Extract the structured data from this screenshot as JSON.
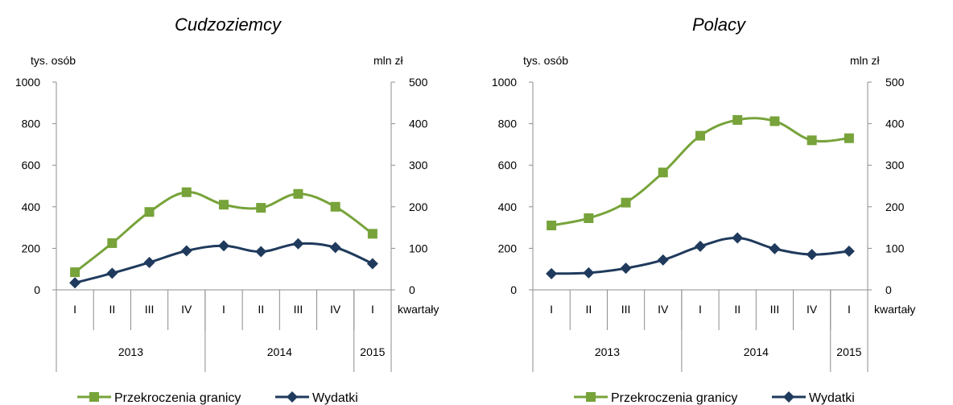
{
  "chart_data": [
    {
      "type": "line",
      "title": "Cudzoziemcy",
      "ylabel_left": "tys. osób",
      "ylabel_right": "mln zł",
      "xlabel": "kwartały",
      "ylim_left": [
        0,
        1000
      ],
      "ylim_right": [
        0,
        500
      ],
      "yticks_left": [
        "0",
        "200",
        "400",
        "600",
        "800",
        "1000"
      ],
      "yticks_right": [
        "0",
        "100",
        "200",
        "300",
        "400",
        "500"
      ],
      "categories": [
        "I",
        "II",
        "III",
        "IV",
        "I",
        "II",
        "III",
        "IV",
        "I"
      ],
      "year_groups": [
        {
          "label": "2013",
          "count": 4
        },
        {
          "label": "2014",
          "count": 4
        },
        {
          "label": "2015",
          "count": 1
        }
      ],
      "grid": false,
      "legend_position": "bottom",
      "series": [
        {
          "name": "Przekroczenia granicy",
          "axis": "left",
          "color": "#77a33a",
          "marker": "square",
          "values": [
            85,
            225,
            375,
            470,
            410,
            395,
            462,
            400,
            270
          ]
        },
        {
          "name": "Wydatki",
          "axis": "right",
          "color": "#1f3a5c",
          "marker": "diamond",
          "values": [
            17,
            40,
            66,
            94,
            106,
            92,
            111,
            102,
            63
          ]
        }
      ]
    },
    {
      "type": "line",
      "title": "Polacy",
      "ylabel_left": "tys. osób",
      "ylabel_right": "mln zł",
      "xlabel": "kwartały",
      "ylim_left": [
        0,
        1000
      ],
      "ylim_right": [
        0,
        500
      ],
      "yticks_left": [
        "0",
        "200",
        "400",
        "600",
        "800",
        "1000"
      ],
      "yticks_right": [
        "0",
        "100",
        "200",
        "300",
        "400",
        "500"
      ],
      "categories": [
        "I",
        "II",
        "III",
        "IV",
        "I",
        "II",
        "III",
        "IV",
        "I"
      ],
      "year_groups": [
        {
          "label": "2013",
          "count": 4
        },
        {
          "label": "2014",
          "count": 4
        },
        {
          "label": "2015",
          "count": 1
        }
      ],
      "grid": false,
      "legend_position": "bottom",
      "series": [
        {
          "name": "Przekroczenia granicy",
          "axis": "left",
          "color": "#77a33a",
          "marker": "square",
          "values": [
            310,
            345,
            420,
            565,
            742,
            818,
            812,
            720,
            730
          ]
        },
        {
          "name": "Wydatki",
          "axis": "right",
          "color": "#1f3a5c",
          "marker": "diamond",
          "values": [
            39,
            41,
            52,
            72,
            105,
            125,
            99,
            85,
            93
          ]
        }
      ]
    }
  ]
}
